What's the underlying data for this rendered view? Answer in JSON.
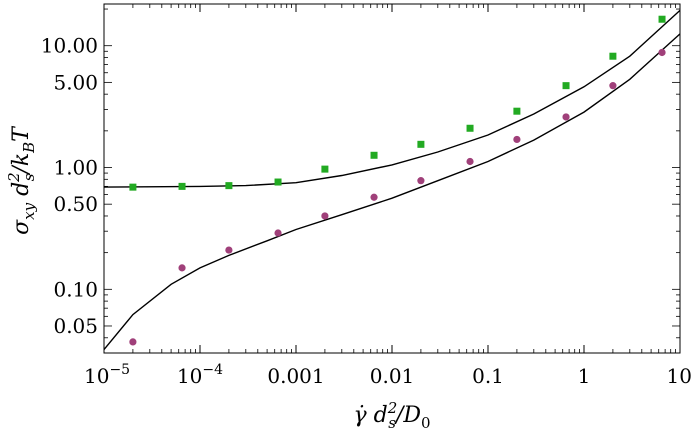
{
  "chart_data": {
    "type": "scatter",
    "x_scale": "log",
    "y_scale": "log",
    "xlim": [
      1e-05,
      10
    ],
    "ylim": [
      0.03,
      22
    ],
    "xlabel": "γ̇ d_s² / D₀",
    "ylabel": "σ_xy d_s² / k_B T",
    "x_ticks": [
      {
        "value": 1e-05,
        "label": "10",
        "sup": "−5"
      },
      {
        "value": 0.0001,
        "label": "10",
        "sup": "−4"
      },
      {
        "value": 0.001,
        "label": "0.001"
      },
      {
        "value": 0.01,
        "label": "0.01"
      },
      {
        "value": 0.1,
        "label": "0.1"
      },
      {
        "value": 1,
        "label": "1"
      },
      {
        "value": 10,
        "label": "10"
      }
    ],
    "y_ticks": [
      {
        "value": 0.05,
        "label": "0.05"
      },
      {
        "value": 0.1,
        "label": "0.10"
      },
      {
        "value": 0.5,
        "label": "0.50"
      },
      {
        "value": 1,
        "label": "1.00"
      },
      {
        "value": 5,
        "label": "5.00"
      },
      {
        "value": 10,
        "label": "10.00"
      }
    ],
    "series": [
      {
        "marker": "square",
        "color": "#22aa22",
        "points": [
          [
            2e-05,
            0.69
          ],
          [
            6.5e-05,
            0.7
          ],
          [
            0.0002,
            0.71
          ],
          [
            0.00065,
            0.76
          ],
          [
            0.002,
            0.97
          ],
          [
            0.0065,
            1.26
          ],
          [
            0.02,
            1.55
          ],
          [
            0.065,
            2.1
          ],
          [
            0.2,
            2.9
          ],
          [
            0.65,
            4.7
          ],
          [
            2,
            8.2
          ],
          [
            6.5,
            16.5
          ]
        ]
      },
      {
        "marker": "circle",
        "color": "#a0407a",
        "points": [
          [
            2e-05,
            0.037
          ],
          [
            6.5e-05,
            0.15
          ],
          [
            0.0002,
            0.21
          ],
          [
            0.00065,
            0.29
          ],
          [
            0.002,
            0.4
          ],
          [
            0.0065,
            0.57
          ],
          [
            0.02,
            0.78
          ],
          [
            0.065,
            1.12
          ],
          [
            0.2,
            1.7
          ],
          [
            0.65,
            2.6
          ],
          [
            2,
            4.7
          ],
          [
            6.5,
            8.8
          ]
        ]
      }
    ],
    "fit_lines": [
      {
        "color": "#000000",
        "points": [
          [
            1e-05,
            0.69
          ],
          [
            0.0001,
            0.7
          ],
          [
            0.0003,
            0.71
          ],
          [
            0.001,
            0.75
          ],
          [
            0.003,
            0.86
          ],
          [
            0.01,
            1.05
          ],
          [
            0.03,
            1.34
          ],
          [
            0.1,
            1.85
          ],
          [
            0.3,
            2.75
          ],
          [
            1,
            4.6
          ],
          [
            3,
            8.2
          ],
          [
            10,
            19.5
          ]
        ]
      },
      {
        "color": "#000000",
        "points": [
          [
            1e-05,
            0.032
          ],
          [
            2e-05,
            0.062
          ],
          [
            5e-05,
            0.11
          ],
          [
            0.0001,
            0.15
          ],
          [
            0.0002,
            0.19
          ],
          [
            0.0005,
            0.25
          ],
          [
            0.001,
            0.31
          ],
          [
            0.003,
            0.41
          ],
          [
            0.01,
            0.56
          ],
          [
            0.03,
            0.78
          ],
          [
            0.1,
            1.12
          ],
          [
            0.3,
            1.68
          ],
          [
            1,
            2.85
          ],
          [
            3,
            5.3
          ],
          [
            10,
            12.5
          ]
        ]
      }
    ]
  }
}
